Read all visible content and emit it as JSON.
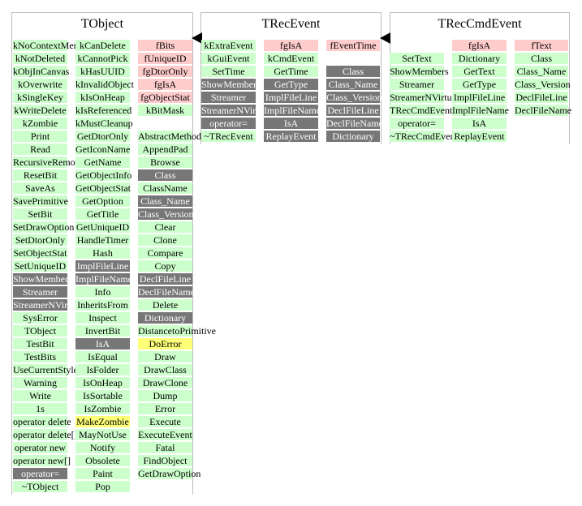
{
  "classes": [
    {
      "name": "TObject",
      "columns": [
        [
          {
            "t": "kNoContextMenu",
            "k": "m"
          },
          {
            "t": "kNotDeleted",
            "k": "m"
          },
          {
            "t": "kObjInCanvas",
            "k": "m"
          },
          {
            "t": "kOverwrite",
            "k": "m"
          },
          {
            "t": "kSingleKey",
            "k": "m"
          },
          {
            "t": "kWriteDelete",
            "k": "m"
          },
          {
            "t": "kZombie",
            "k": "m"
          },
          {
            "t": "Print",
            "k": "m"
          },
          {
            "t": "Read",
            "k": "m"
          },
          {
            "t": "RecursiveRemove",
            "k": "m"
          },
          {
            "t": "ResetBit",
            "k": "m"
          },
          {
            "t": "SaveAs",
            "k": "m"
          },
          {
            "t": "SavePrimitive",
            "k": "m"
          },
          {
            "t": "SetBit",
            "k": "m"
          },
          {
            "t": "SetDrawOption",
            "k": "m"
          },
          {
            "t": "SetDtorOnly",
            "k": "m"
          },
          {
            "t": "SetObjectStat",
            "k": "m"
          },
          {
            "t": "SetUniqueID",
            "k": "m"
          },
          {
            "t": "ShowMembers",
            "k": "x"
          },
          {
            "t": "Streamer",
            "k": "x"
          },
          {
            "t": "StreamerNVirtual",
            "k": "x"
          },
          {
            "t": "SysError",
            "k": "m"
          },
          {
            "t": "TObject",
            "k": "m"
          },
          {
            "t": "TestBit",
            "k": "m"
          },
          {
            "t": "TestBits",
            "k": "m"
          },
          {
            "t": "UseCurrentStyle",
            "k": "m"
          },
          {
            "t": "Warning",
            "k": "m"
          },
          {
            "t": "Write",
            "k": "m"
          },
          {
            "t": "1s",
            "k": "m"
          },
          {
            "t": "operator delete",
            "k": "m"
          },
          {
            "t": "operator delete[]",
            "k": "m"
          },
          {
            "t": "operator new",
            "k": "m"
          },
          {
            "t": "operator new[]",
            "k": "m"
          },
          {
            "t": "operator=",
            "k": "x"
          },
          {
            "t": "~TObject",
            "k": "m"
          }
        ],
        [
          {
            "t": "kCanDelete",
            "k": "m"
          },
          {
            "t": "kCannotPick",
            "k": "m"
          },
          {
            "t": "kHasUUID",
            "k": "m"
          },
          {
            "t": "kInvalidObject",
            "k": "m"
          },
          {
            "t": "kIsOnHeap",
            "k": "m"
          },
          {
            "t": "kIsReferenced",
            "k": "m"
          },
          {
            "t": "kMustCleanup",
            "k": "m"
          },
          {
            "t": "GetDtorOnly",
            "k": "m"
          },
          {
            "t": "GetIconName",
            "k": "m"
          },
          {
            "t": "GetName",
            "k": "m"
          },
          {
            "t": "GetObjectInfo",
            "k": "m"
          },
          {
            "t": "GetObjectStat",
            "k": "m"
          },
          {
            "t": "GetOption",
            "k": "m"
          },
          {
            "t": "GetTitle",
            "k": "m"
          },
          {
            "t": "GetUniqueID",
            "k": "m"
          },
          {
            "t": "HandleTimer",
            "k": "m"
          },
          {
            "t": "Hash",
            "k": "m"
          },
          {
            "t": "ImplFileLine",
            "k": "x"
          },
          {
            "t": "ImplFileName",
            "k": "x"
          },
          {
            "t": "Info",
            "k": "m"
          },
          {
            "t": "InheritsFrom",
            "k": "m"
          },
          {
            "t": "Inspect",
            "k": "m"
          },
          {
            "t": "InvertBit",
            "k": "m"
          },
          {
            "t": "IsA",
            "k": "x"
          },
          {
            "t": "IsEqual",
            "k": "m"
          },
          {
            "t": "IsFolder",
            "k": "m"
          },
          {
            "t": "IsOnHeap",
            "k": "m"
          },
          {
            "t": "IsSortable",
            "k": "m"
          },
          {
            "t": "IsZombie",
            "k": "m"
          },
          {
            "t": "MakeZombie",
            "k": "y"
          },
          {
            "t": "MayNotUse",
            "k": "m"
          },
          {
            "t": "Notify",
            "k": "m"
          },
          {
            "t": "Obsolete",
            "k": "m"
          },
          {
            "t": "Paint",
            "k": "m"
          },
          {
            "t": "Pop",
            "k": "m"
          }
        ],
        [
          {
            "t": "fBits",
            "k": "r"
          },
          {
            "t": "fUniqueID",
            "k": "r"
          },
          {
            "t": "fgDtorOnly",
            "k": "r"
          },
          {
            "t": "fgIsA",
            "k": "r"
          },
          {
            "t": "fgObjectStat",
            "k": "r"
          },
          {
            "t": "kBitMask",
            "k": "m"
          },
          {
            "t": "",
            "k": "e"
          },
          {
            "t": "AbstractMethod",
            "k": "m"
          },
          {
            "t": "AppendPad",
            "k": "m"
          },
          {
            "t": "Browse",
            "k": "m"
          },
          {
            "t": "Class",
            "k": "x"
          },
          {
            "t": "ClassName",
            "k": "m"
          },
          {
            "t": "Class_Name",
            "k": "x"
          },
          {
            "t": "Class_Version",
            "k": "x"
          },
          {
            "t": "Clear",
            "k": "m"
          },
          {
            "t": "Clone",
            "k": "m"
          },
          {
            "t": "Compare",
            "k": "m"
          },
          {
            "t": "Copy",
            "k": "m"
          },
          {
            "t": "DeclFileLine",
            "k": "x"
          },
          {
            "t": "DeclFileName",
            "k": "x"
          },
          {
            "t": "Delete",
            "k": "m"
          },
          {
            "t": "Dictionary",
            "k": "x"
          },
          {
            "t": "DistancetoPrimitive",
            "k": "m"
          },
          {
            "t": "DoError",
            "k": "y"
          },
          {
            "t": "Draw",
            "k": "m"
          },
          {
            "t": "DrawClass",
            "k": "m"
          },
          {
            "t": "DrawClone",
            "k": "m"
          },
          {
            "t": "Dump",
            "k": "m"
          },
          {
            "t": "Error",
            "k": "m"
          },
          {
            "t": "Execute",
            "k": "m"
          },
          {
            "t": "ExecuteEvent",
            "k": "m"
          },
          {
            "t": "Fatal",
            "k": "m"
          },
          {
            "t": "FindObject",
            "k": "m"
          },
          {
            "t": "GetDrawOption",
            "k": "m"
          }
        ]
      ]
    },
    {
      "name": "TRecEvent",
      "columns": [
        [
          {
            "t": "kExtraEvent",
            "k": "m"
          },
          {
            "t": "kGuiEvent",
            "k": "m"
          },
          {
            "t": "SetTime",
            "k": "m"
          },
          {
            "t": "ShowMembers",
            "k": "x"
          },
          {
            "t": "Streamer",
            "k": "x"
          },
          {
            "t": "StreamerNVirtual",
            "k": "x"
          },
          {
            "t": "operator=",
            "k": "x"
          },
          {
            "t": "~TRecEvent",
            "k": "m"
          }
        ],
        [
          {
            "t": "fgIsA",
            "k": "r"
          },
          {
            "t": "kCmdEvent",
            "k": "m"
          },
          {
            "t": "GetTime",
            "k": "m"
          },
          {
            "t": "GetType",
            "k": "x"
          },
          {
            "t": "ImplFileLine",
            "k": "x"
          },
          {
            "t": "ImplFileName",
            "k": "x"
          },
          {
            "t": "IsA",
            "k": "x"
          },
          {
            "t": "ReplayEvent",
            "k": "x"
          }
        ],
        [
          {
            "t": "fEventTime",
            "k": "r"
          },
          {
            "t": "",
            "k": "e"
          },
          {
            "t": "Class",
            "k": "x"
          },
          {
            "t": "Class_Name",
            "k": "x"
          },
          {
            "t": "Class_Version",
            "k": "x"
          },
          {
            "t": "DeclFileLine",
            "k": "x"
          },
          {
            "t": "DeclFileName",
            "k": "x"
          },
          {
            "t": "Dictionary",
            "k": "x"
          }
        ]
      ]
    },
    {
      "name": "TRecCmdEvent",
      "columns": [
        [
          {
            "t": "",
            "k": "e"
          },
          {
            "t": "SetText",
            "k": "m"
          },
          {
            "t": "ShowMembers",
            "k": "m"
          },
          {
            "t": "Streamer",
            "k": "m"
          },
          {
            "t": "StreamerNVirtual",
            "k": "m"
          },
          {
            "t": "TRecCmdEvent",
            "k": "m"
          },
          {
            "t": "operator=",
            "k": "m"
          },
          {
            "t": "~TRecCmdEvent",
            "k": "m"
          }
        ],
        [
          {
            "t": "fgIsA",
            "k": "r"
          },
          {
            "t": "Dictionary",
            "k": "m"
          },
          {
            "t": "GetText",
            "k": "m"
          },
          {
            "t": "GetType",
            "k": "m"
          },
          {
            "t": "ImplFileLine",
            "k": "m"
          },
          {
            "t": "ImplFileName",
            "k": "m"
          },
          {
            "t": "IsA",
            "k": "m"
          },
          {
            "t": "ReplayEvent",
            "k": "m"
          }
        ],
        [
          {
            "t": "fText",
            "k": "r"
          },
          {
            "t": "Class",
            "k": "m"
          },
          {
            "t": "Class_Name",
            "k": "m"
          },
          {
            "t": "Class_Version",
            "k": "m"
          },
          {
            "t": "DeclFileLine",
            "k": "m"
          },
          {
            "t": "DeclFileName",
            "k": "m"
          }
        ]
      ]
    }
  ]
}
